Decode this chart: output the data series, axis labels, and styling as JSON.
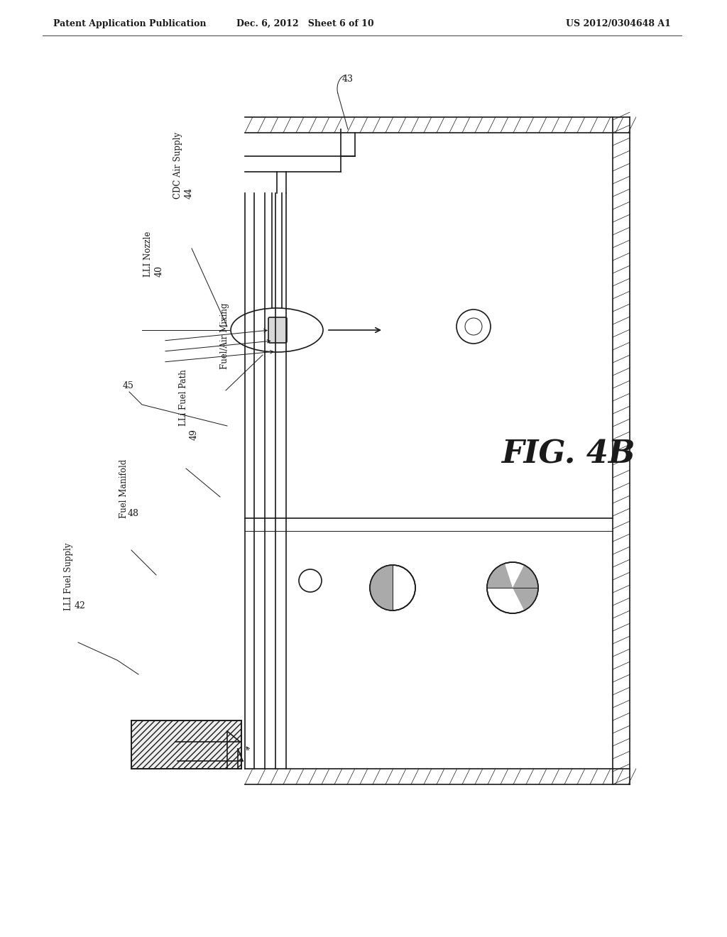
{
  "header_left": "Patent Application Publication",
  "header_mid": "Dec. 6, 2012   Sheet 6 of 10",
  "header_right": "US 2012/0304648 A1",
  "fig_label": "FIG. 4B",
  "background_color": "#ffffff",
  "line_color": "#1a1a1a",
  "hatch_color": "#555555",
  "label_43": "43",
  "label_44_num": "44",
  "label_44_txt": "CDC Air Supply",
  "label_40_num": "40",
  "label_40_txt": "LLI Nozzle",
  "label_fuel_air": "Fuel/Air Mixing",
  "label_45_num": "45",
  "label_lli_path": "LLi Fuel Path",
  "label_49_num": "49",
  "label_48_num": "48",
  "label_48_txt": "Fuel Manifold",
  "label_42_num": "42",
  "label_42_txt": "LLI Fuel Supply"
}
